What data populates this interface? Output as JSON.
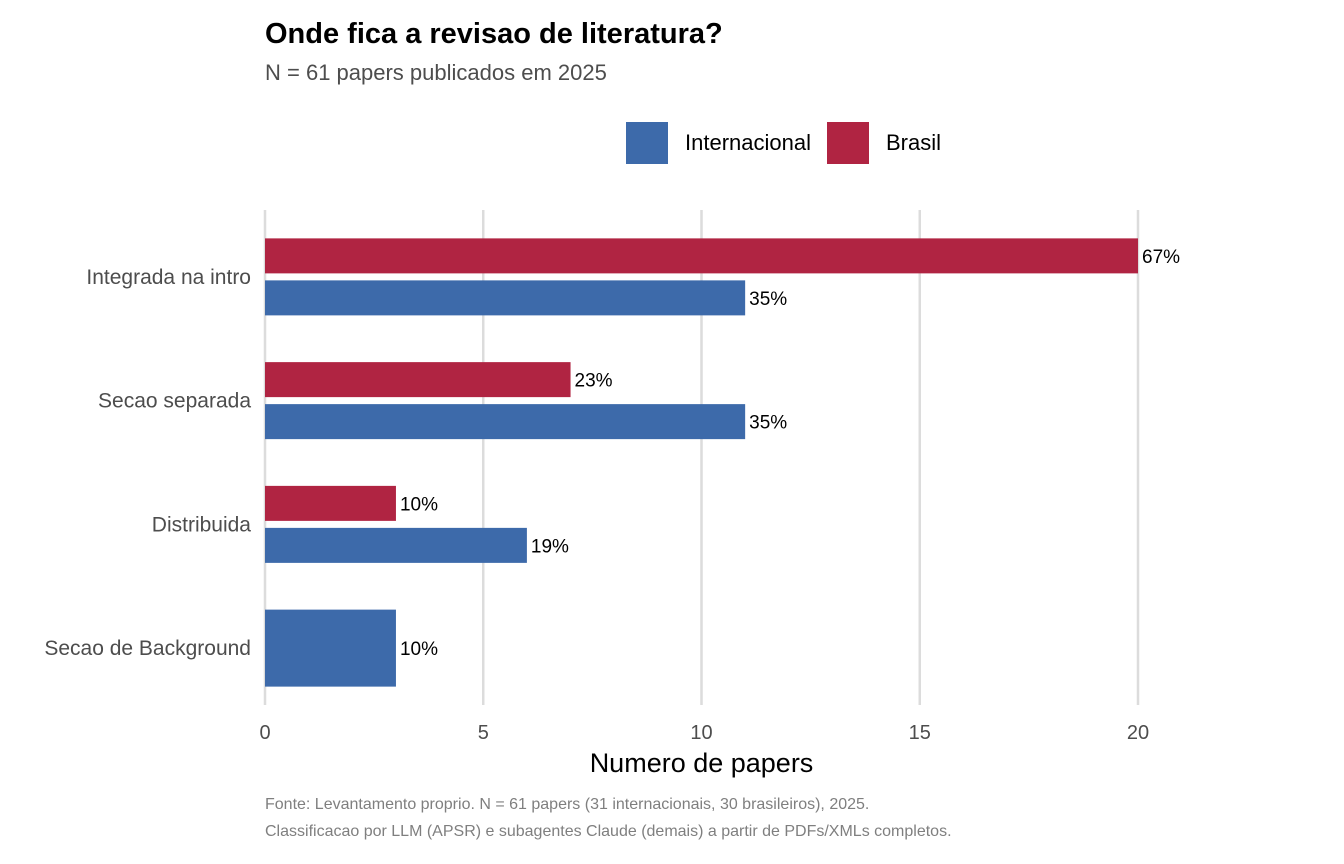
{
  "chart": {
    "title": "Onde fica a revisao de literatura?",
    "subtitle": "N = 61 papers publicados em 2025",
    "caption_line1": "Fonte: Levantamento proprio. N = 61 papers (31 internacionais, 30 brasileiros), 2025.",
    "caption_line2": "Classificacao por LLM (APSR) e subagentes Claude (demais) a partir de PDFs/XMLs completos.",
    "legend": [
      {
        "label": "Internacional",
        "color": "#3d6aaa"
      },
      {
        "label": "Brasil",
        "color": "#b02442"
      }
    ]
  },
  "chart_data": {
    "type": "bar",
    "orientation": "horizontal",
    "title": "Onde fica a revisao de literatura?",
    "subtitle": "N = 61 papers publicados em 2025",
    "xlabel": "Numero de papers",
    "ylabel": "",
    "xlim": [
      0,
      20
    ],
    "xticks": [
      0,
      5,
      10,
      15,
      20
    ],
    "grid": "vertical",
    "legend_position": "top",
    "categories": [
      "Integrada na intro",
      "Secao separada",
      "Distribuida",
      "Secao de Background"
    ],
    "series": [
      {
        "name": "Brasil",
        "color": "#b02442",
        "values": [
          20,
          7,
          3,
          0
        ],
        "labels": [
          "67%",
          "23%",
          "10%",
          null
        ]
      },
      {
        "name": "Internacional",
        "color": "#3d6aaa",
        "values": [
          11,
          11,
          6,
          3
        ],
        "labels": [
          "35%",
          "35%",
          "19%",
          "10%"
        ]
      }
    ]
  }
}
